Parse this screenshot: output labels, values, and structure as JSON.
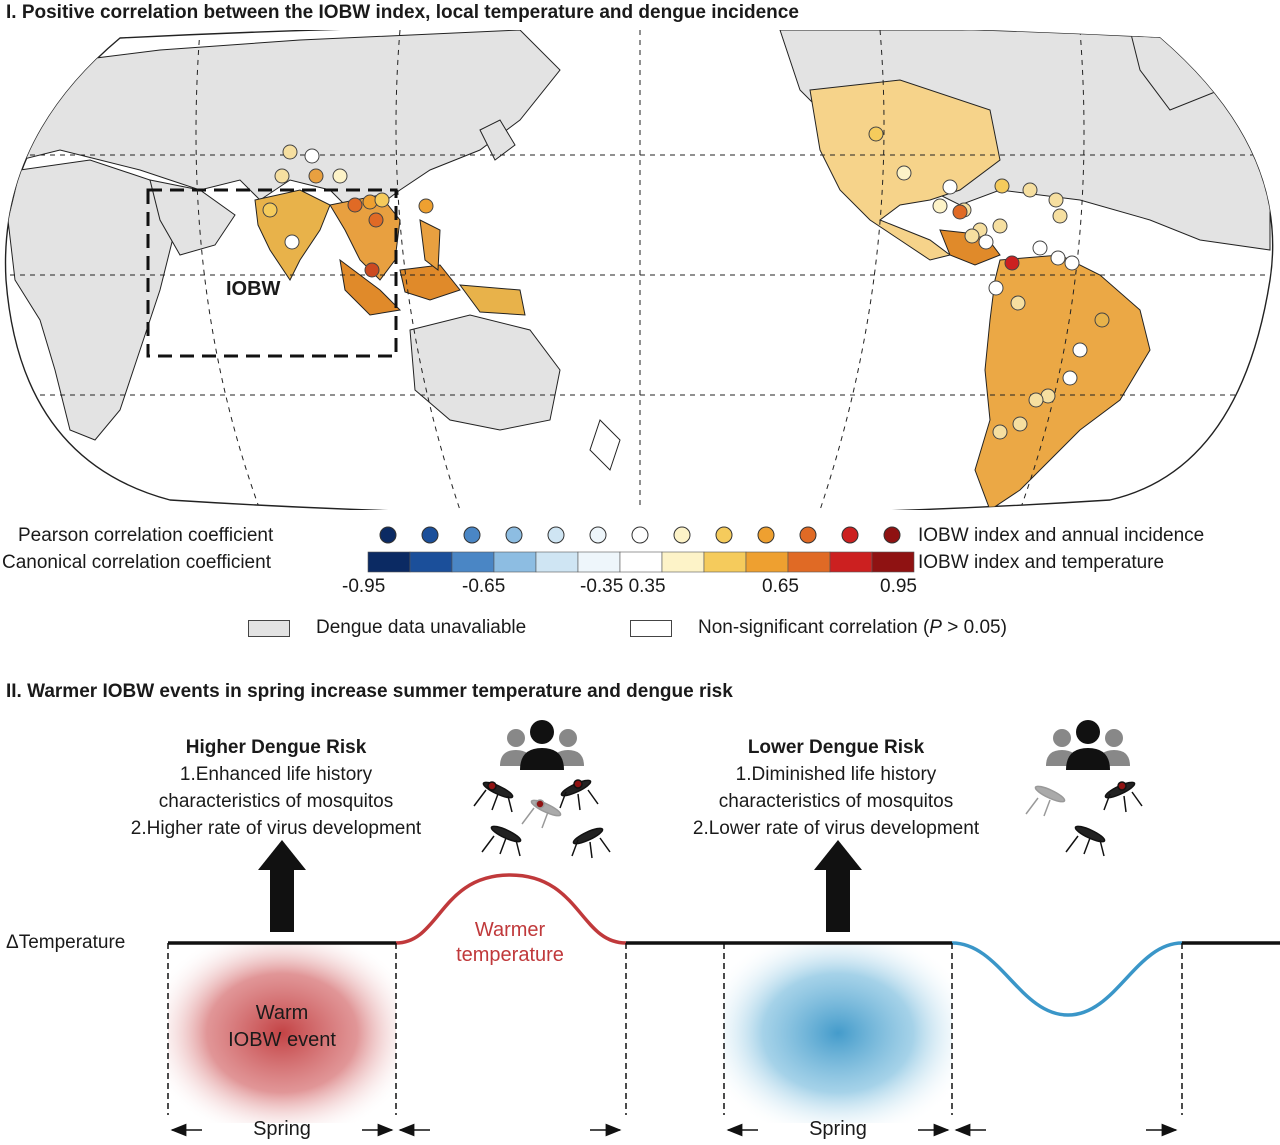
{
  "panel1": {
    "title": "I. Positive correlation between the IOBW index, local temperature and dengue incidence",
    "map": {
      "region_label": "IOBW"
    },
    "legend": {
      "pearson_label": "Pearson correlation coefficient",
      "canonical_label": "Canonical correlation coefficient",
      "incidence_label": "IOBW index and annual incidence",
      "temperature_label": "IOBW index and temperature",
      "ticks": [
        "-0.95",
        "-0.65",
        "-0.35 0.35",
        "0.65",
        "0.95"
      ],
      "dot_colors": [
        "#0b2a63",
        "#1b4f9a",
        "#4a86c5",
        "#8dbde2",
        "#cfe5f3",
        "#eef6fb",
        "#ffffff",
        "#fdf3c8",
        "#f5cb5c",
        "#eea030",
        "#e06a25",
        "#cc2020",
        "#8f1212"
      ],
      "bar_colors": [
        "#0b2a63",
        "#1b4f9a",
        "#4a86c5",
        "#8dbde2",
        "#cfe5f3",
        "#eef6fb",
        "#ffffff",
        "#fdf3c8",
        "#f5cb5c",
        "#eea030",
        "#e06a25",
        "#cc2020",
        "#8f1212"
      ],
      "na_label": "Dengue data unavaliable",
      "nonsig_label_pre": "Non-significant correlation (",
      "nonsig_label_p": "P",
      "nonsig_label_post": " > 0.05)"
    }
  },
  "panel2": {
    "title": "II. Warmer IOBW events in spring increase summer temperature and dengue risk",
    "higher": {
      "heading": "Higher Dengue Risk",
      "line1": "1.Enhanced life history",
      "line2": "characteristics of mosquitos",
      "line3": "2.Higher rate of virus development"
    },
    "lower": {
      "heading": "Lower Dengue Risk",
      "line1": "1.Diminished life history",
      "line2": "characteristics of mosquitos",
      "line3": "2.Lower rate of virus development"
    },
    "axis_label": "ΔTemperature",
    "warm_event_line1": "Warm",
    "warm_event_line2": "IOBW event",
    "warmer_line1": "Warmer",
    "warmer_line2": "temperature",
    "spring_left": "Spring",
    "spring_right": "Spring",
    "colors": {
      "warm": "#c0393b",
      "cool": "#3a96c8"
    }
  }
}
